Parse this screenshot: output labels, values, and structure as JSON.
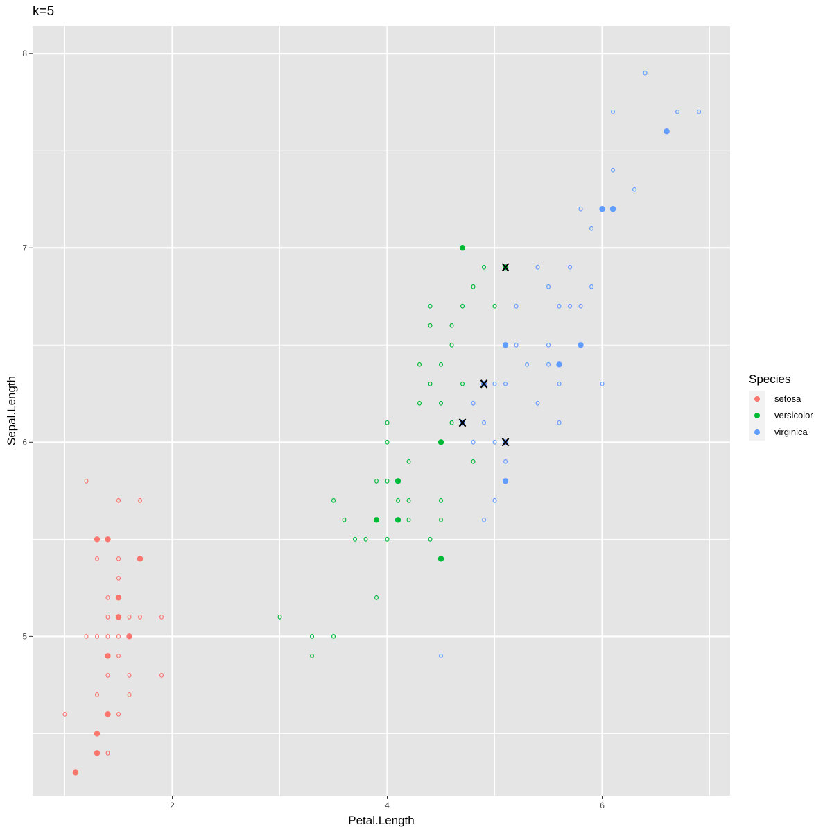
{
  "chart_data": {
    "type": "scatter",
    "title": "k=5",
    "xlabel": "Petal.Length",
    "ylabel": "Sepal.Length",
    "xlim": [
      0.7,
      7.19
    ],
    "ylim": [
      4.18,
      8.14
    ],
    "xticks": [
      2,
      4,
      6
    ],
    "yticks": [
      5,
      6,
      7,
      8
    ],
    "grid": true,
    "legend": {
      "title": "Species",
      "placement": "right",
      "entries": [
        {
          "label": "setosa",
          "color": "#F8766D"
        },
        {
          "label": "versicolor",
          "color": "#00BA38"
        },
        {
          "label": "virginica",
          "color": "#619CFF"
        }
      ]
    },
    "marker_kinds": {
      "o": "hollow",
      "f": "filled",
      "x": "filled with X mark"
    },
    "points": [
      [
        1.2,
        5.8,
        "setosa",
        "o"
      ],
      [
        1.5,
        5.7,
        "setosa",
        "o"
      ],
      [
        1.7,
        5.7,
        "setosa",
        "o"
      ],
      [
        1.3,
        5.5,
        "setosa",
        "f"
      ],
      [
        1.4,
        5.5,
        "setosa",
        "f"
      ],
      [
        1.3,
        5.4,
        "setosa",
        "o"
      ],
      [
        1.5,
        5.4,
        "setosa",
        "o"
      ],
      [
        1.7,
        5.4,
        "setosa",
        "f"
      ],
      [
        1.5,
        5.3,
        "setosa",
        "o"
      ],
      [
        1.4,
        5.2,
        "setosa",
        "o"
      ],
      [
        1.5,
        5.2,
        "setosa",
        "f"
      ],
      [
        1.4,
        5.1,
        "setosa",
        "o"
      ],
      [
        1.5,
        5.1,
        "setosa",
        "f"
      ],
      [
        1.6,
        5.1,
        "setosa",
        "o"
      ],
      [
        1.7,
        5.1,
        "setosa",
        "o"
      ],
      [
        1.9,
        5.1,
        "setosa",
        "o"
      ],
      [
        1.2,
        5.0,
        "setosa",
        "o"
      ],
      [
        1.3,
        5.0,
        "setosa",
        "o"
      ],
      [
        1.4,
        5.0,
        "setosa",
        "o"
      ],
      [
        1.5,
        5.0,
        "setosa",
        "o"
      ],
      [
        1.6,
        5.0,
        "setosa",
        "f"
      ],
      [
        1.4,
        4.9,
        "setosa",
        "f"
      ],
      [
        1.5,
        4.9,
        "setosa",
        "o"
      ],
      [
        1.4,
        4.8,
        "setosa",
        "o"
      ],
      [
        1.6,
        4.8,
        "setosa",
        "o"
      ],
      [
        1.9,
        4.8,
        "setosa",
        "o"
      ],
      [
        1.3,
        4.7,
        "setosa",
        "o"
      ],
      [
        1.6,
        4.7,
        "setosa",
        "o"
      ],
      [
        1.0,
        4.6,
        "setosa",
        "o"
      ],
      [
        1.4,
        4.6,
        "setosa",
        "f"
      ],
      [
        1.5,
        4.6,
        "setosa",
        "o"
      ],
      [
        1.3,
        4.5,
        "setosa",
        "f"
      ],
      [
        1.3,
        4.4,
        "setosa",
        "f"
      ],
      [
        1.4,
        4.4,
        "setosa",
        "o"
      ],
      [
        1.1,
        4.3,
        "setosa",
        "f"
      ],
      [
        4.7,
        7.0,
        "versicolor",
        "f"
      ],
      [
        4.9,
        6.9,
        "versicolor",
        "o"
      ],
      [
        5.1,
        6.9,
        "versicolor",
        "x"
      ],
      [
        4.8,
        6.8,
        "versicolor",
        "o"
      ],
      [
        4.4,
        6.7,
        "versicolor",
        "o"
      ],
      [
        4.7,
        6.7,
        "versicolor",
        "o"
      ],
      [
        5.0,
        6.7,
        "versicolor",
        "o"
      ],
      [
        4.4,
        6.6,
        "versicolor",
        "o"
      ],
      [
        4.6,
        6.6,
        "versicolor",
        "o"
      ],
      [
        4.6,
        6.5,
        "versicolor",
        "o"
      ],
      [
        4.3,
        6.4,
        "versicolor",
        "o"
      ],
      [
        4.5,
        6.4,
        "versicolor",
        "o"
      ],
      [
        4.4,
        6.3,
        "versicolor",
        "o"
      ],
      [
        4.7,
        6.3,
        "versicolor",
        "o"
      ],
      [
        4.3,
        6.2,
        "versicolor",
        "o"
      ],
      [
        4.5,
        6.2,
        "versicolor",
        "o"
      ],
      [
        4.0,
        6.1,
        "versicolor",
        "o"
      ],
      [
        4.6,
        6.1,
        "versicolor",
        "o"
      ],
      [
        4.0,
        6.0,
        "versicolor",
        "o"
      ],
      [
        4.5,
        6.0,
        "versicolor",
        "f"
      ],
      [
        4.2,
        5.9,
        "versicolor",
        "o"
      ],
      [
        4.8,
        5.9,
        "versicolor",
        "o"
      ],
      [
        3.9,
        5.8,
        "versicolor",
        "o"
      ],
      [
        4.0,
        5.8,
        "versicolor",
        "o"
      ],
      [
        4.1,
        5.8,
        "versicolor",
        "f"
      ],
      [
        3.5,
        5.7,
        "versicolor",
        "o"
      ],
      [
        4.1,
        5.7,
        "versicolor",
        "o"
      ],
      [
        4.2,
        5.7,
        "versicolor",
        "o"
      ],
      [
        4.5,
        5.7,
        "versicolor",
        "o"
      ],
      [
        3.6,
        5.6,
        "versicolor",
        "o"
      ],
      [
        3.9,
        5.6,
        "versicolor",
        "f"
      ],
      [
        4.1,
        5.6,
        "versicolor",
        "f"
      ],
      [
        4.2,
        5.6,
        "versicolor",
        "o"
      ],
      [
        4.5,
        5.6,
        "versicolor",
        "o"
      ],
      [
        3.7,
        5.5,
        "versicolor",
        "o"
      ],
      [
        3.8,
        5.5,
        "versicolor",
        "o"
      ],
      [
        4.0,
        5.5,
        "versicolor",
        "o"
      ],
      [
        4.4,
        5.5,
        "versicolor",
        "o"
      ],
      [
        4.5,
        5.4,
        "versicolor",
        "f"
      ],
      [
        3.9,
        5.2,
        "versicolor",
        "o"
      ],
      [
        3.0,
        5.1,
        "versicolor",
        "o"
      ],
      [
        3.3,
        5.0,
        "versicolor",
        "o"
      ],
      [
        3.5,
        5.0,
        "versicolor",
        "o"
      ],
      [
        3.3,
        4.9,
        "versicolor",
        "o"
      ],
      [
        6.4,
        7.9,
        "virginica",
        "o"
      ],
      [
        6.1,
        7.7,
        "virginica",
        "o"
      ],
      [
        6.7,
        7.7,
        "virginica",
        "o"
      ],
      [
        6.9,
        7.7,
        "virginica",
        "o"
      ],
      [
        6.6,
        7.6,
        "virginica",
        "f"
      ],
      [
        6.1,
        7.4,
        "virginica",
        "o"
      ],
      [
        6.3,
        7.3,
        "virginica",
        "o"
      ],
      [
        5.8,
        7.2,
        "virginica",
        "o"
      ],
      [
        6.0,
        7.2,
        "virginica",
        "f"
      ],
      [
        6.1,
        7.2,
        "virginica",
        "f"
      ],
      [
        5.9,
        7.1,
        "virginica",
        "o"
      ],
      [
        5.4,
        6.9,
        "virginica",
        "o"
      ],
      [
        5.7,
        6.9,
        "virginica",
        "o"
      ],
      [
        5.5,
        6.8,
        "virginica",
        "o"
      ],
      [
        5.9,
        6.8,
        "virginica",
        "o"
      ],
      [
        5.2,
        6.7,
        "virginica",
        "o"
      ],
      [
        5.6,
        6.7,
        "virginica",
        "o"
      ],
      [
        5.7,
        6.7,
        "virginica",
        "o"
      ],
      [
        5.8,
        6.7,
        "virginica",
        "o"
      ],
      [
        5.1,
        6.5,
        "virginica",
        "f"
      ],
      [
        5.2,
        6.5,
        "virginica",
        "o"
      ],
      [
        5.5,
        6.5,
        "virginica",
        "o"
      ],
      [
        5.8,
        6.5,
        "virginica",
        "f"
      ],
      [
        5.3,
        6.4,
        "virginica",
        "o"
      ],
      [
        5.5,
        6.4,
        "virginica",
        "o"
      ],
      [
        5.6,
        6.4,
        "virginica",
        "f"
      ],
      [
        4.9,
        6.3,
        "virginica",
        "x"
      ],
      [
        5.0,
        6.3,
        "virginica",
        "o"
      ],
      [
        5.1,
        6.3,
        "virginica",
        "o"
      ],
      [
        5.6,
        6.3,
        "virginica",
        "o"
      ],
      [
        6.0,
        6.3,
        "virginica",
        "o"
      ],
      [
        4.8,
        6.2,
        "virginica",
        "o"
      ],
      [
        5.4,
        6.2,
        "virginica",
        "o"
      ],
      [
        4.7,
        6.1,
        "virginica",
        "x"
      ],
      [
        4.9,
        6.1,
        "virginica",
        "o"
      ],
      [
        5.6,
        6.1,
        "virginica",
        "o"
      ],
      [
        4.8,
        6.0,
        "virginica",
        "o"
      ],
      [
        5.0,
        6.0,
        "virginica",
        "o"
      ],
      [
        5.1,
        6.0,
        "virginica",
        "x"
      ],
      [
        5.1,
        5.9,
        "virginica",
        "o"
      ],
      [
        5.1,
        5.8,
        "virginica",
        "f"
      ],
      [
        5.0,
        5.7,
        "virginica",
        "o"
      ],
      [
        4.9,
        5.6,
        "virginica",
        "o"
      ],
      [
        4.5,
        4.9,
        "virginica",
        "o"
      ]
    ]
  }
}
